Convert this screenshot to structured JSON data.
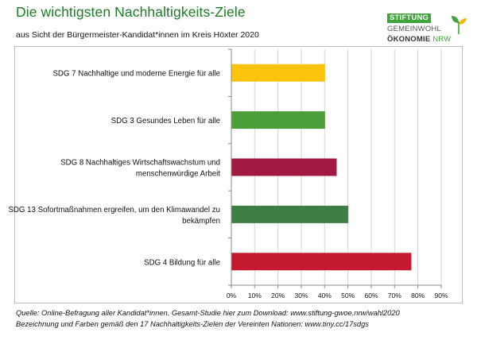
{
  "header": {
    "title": "Die wichtigsten Nachhaltigkeits-Ziele",
    "subtitle": "aus Sicht der Bürgermeister-Kandidat*innen im Kreis Höxter 2020"
  },
  "logo": {
    "line1": "STIFTUNG",
    "line2": "GEMEINWOHL",
    "line3_main": "ÖKONOMIE",
    "line3_accent": "NRW",
    "color_accent": "#40a43b"
  },
  "chart_data": {
    "type": "bar",
    "orientation": "horizontal",
    "categories": [
      [
        "SDG 7 Nachhaltige und moderne Energie für alle"
      ],
      [
        "SDG 3 Gesundes Leben für alle"
      ],
      [
        "SDG 8 Nachhaltiges Wirtschaftswachstum und",
        "menschenwürdige Arbeit"
      ],
      [
        "SDG 13 Sofortmaßnahmen ergreifen, um den Klimawandel zu",
        "bekämpfen"
      ],
      [
        "SDG 4 Bildung für alle"
      ]
    ],
    "values": [
      0.4,
      0.4,
      0.45,
      0.5,
      0.77
    ],
    "colors": [
      "#fcc30b",
      "#4c9f38",
      "#a21942",
      "#3f7e44",
      "#c5192d"
    ],
    "xlim": [
      0,
      0.9
    ],
    "xticks": [
      "0%",
      "10%",
      "20%",
      "30%",
      "40%",
      "50%",
      "60%",
      "70%",
      "80%",
      "90%"
    ],
    "grid": true,
    "legend": "none"
  },
  "footer": {
    "line1": "Quelle: Online-Befragung aller Kandidat*innen. Gesamt-Studie hier zum Download: www.stiftung-gwoe.nrw/wahl2020",
    "line2": "Bezeichnung und Farben gemäß den 17 Nachhaltigkeits-Zielen der Vereinten Nationen: www.tiny.cc/17sdgs"
  }
}
